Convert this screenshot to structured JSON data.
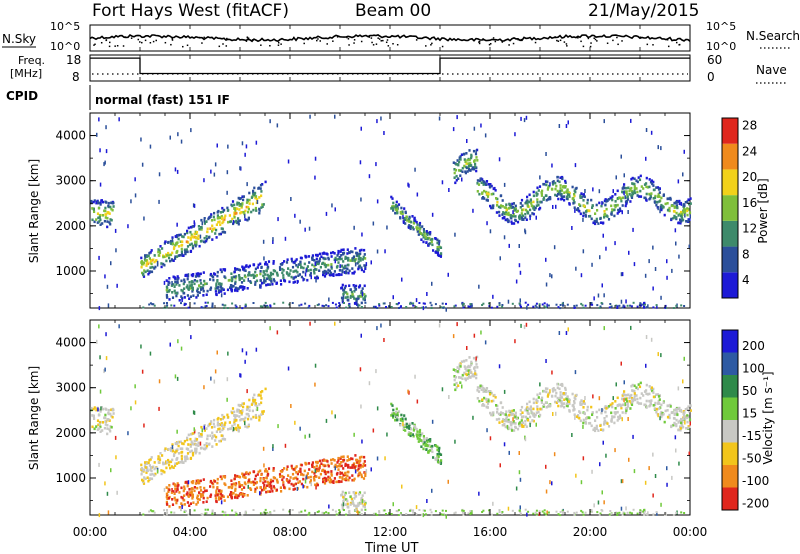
{
  "header": {
    "station": "Fort Hays West (fitACF)",
    "beam": "Beam 00",
    "date": "21/May/2015"
  },
  "noise_panel": {
    "left_label": "N.Sky",
    "right_label": "N.Search",
    "left_ticks": [
      "10^5",
      "10^0"
    ],
    "right_ticks": [
      "10^5",
      "10^0"
    ]
  },
  "freq_panel": {
    "left_label_line1": "Freq.",
    "left_label_line2": "[MHz]",
    "right_label": "Nave",
    "left_ticks": [
      "18",
      "8"
    ],
    "right_ticks": [
      "60",
      "0"
    ],
    "freq_steps": [
      {
        "t_start": 0,
        "t_end": 2,
        "value": 17.5
      },
      {
        "t_start": 2,
        "t_end": 14,
        "value": 10.5
      },
      {
        "t_start": 14,
        "t_end": 24,
        "value": 17.5
      }
    ]
  },
  "cpid_panel": {
    "label": "CPID",
    "text": "normal (fast) 151 IF"
  },
  "x_axis": {
    "label": "Time UT",
    "ticks": [
      "00:00",
      "04:00",
      "08:00",
      "12:00",
      "16:00",
      "20:00",
      "00:00"
    ],
    "tick_hours": [
      0,
      4,
      8,
      12,
      16,
      20,
      24
    ]
  },
  "power_panel": {
    "ylabel": "Slant Range [km]",
    "yticks": [
      "1000",
      "2000",
      "3000",
      "4000"
    ],
    "ytick_values": [
      1000,
      2000,
      3000,
      4000
    ],
    "ylim": [
      180,
      4500
    ],
    "colorbar_label": "Power [dB]",
    "colorbar_ticks": [
      "4",
      "8",
      "12",
      "16",
      "20",
      "24",
      "28"
    ],
    "colorbar_colors": [
      "#1d1ad6",
      "#2b4f9a",
      "#3e8a6b",
      "#7fbf3a",
      "#f2d21b",
      "#f08a1c",
      "#e0261c"
    ]
  },
  "velocity_panel": {
    "ylabel": "Slant Range [km]",
    "yticks": [
      "1000",
      "2000",
      "3000",
      "4000"
    ],
    "colorbar_label": "Velocity [m s⁻¹]",
    "colorbar_ticks": [
      "200",
      "100",
      "50",
      "15",
      "-15",
      "-50",
      "-100",
      "-200"
    ],
    "colorbar_colors": [
      "#1d1ad6",
      "#2e5aa3",
      "#2f8a4a",
      "#6fc93a",
      "#c8c8c4",
      "#f2c51b",
      "#f08a1c",
      "#e0261c"
    ]
  },
  "chart_data": [
    {
      "type": "heatmap",
      "title": "Power",
      "xlabel": "Time UT",
      "ylabel": "Slant Range [km]",
      "xlim": [
        0,
        24
      ],
      "ylim": [
        180,
        4500
      ],
      "colorbar_label": "Power [dB]",
      "colorbar_range": [
        2,
        30
      ],
      "features": [
        {
          "t_start": 0.0,
          "t_end": 0.9,
          "range_start": 2000,
          "range_end": 2650,
          "peak_db": 20
        },
        {
          "t_start": 2.0,
          "t_end": 7.0,
          "range_start": 900,
          "range_end": 2900,
          "peak_db": 22
        },
        {
          "t_start": 3.0,
          "t_end": 11.0,
          "range_start": 400,
          "range_end": 1600,
          "peak_db": 14
        },
        {
          "t_start": 10.0,
          "t_end": 11.0,
          "range_start": 250,
          "range_end": 750,
          "peak_db": 15
        },
        {
          "t_start": 12.0,
          "t_end": 14.0,
          "range_start": 1400,
          "range_end": 2700,
          "peak_db": 16
        },
        {
          "t_start": 14.5,
          "t_end": 24.0,
          "range_start": 1900,
          "range_end": 3800,
          "peak_db": 18
        }
      ]
    },
    {
      "type": "heatmap",
      "title": "Velocity",
      "xlabel": "Time UT",
      "ylabel": "Slant Range [km]",
      "xlim": [
        0,
        24
      ],
      "ylim": [
        180,
        4500
      ],
      "colorbar_label": "Velocity [m s⁻¹]",
      "colorbar_range": [
        -200,
        200
      ],
      "features": [
        {
          "t_start": 0.0,
          "t_end": 0.9,
          "range_start": 2000,
          "range_end": 2650,
          "velocity": 0
        },
        {
          "t_start": 2.0,
          "t_end": 7.0,
          "range_start": 900,
          "range_end": 2900,
          "velocity": -10
        },
        {
          "t_start": 3.0,
          "t_end": 11.0,
          "range_start": 400,
          "range_end": 1600,
          "velocity": -70
        },
        {
          "t_start": 10.0,
          "t_end": 11.0,
          "range_start": 250,
          "range_end": 750,
          "velocity": 0
        },
        {
          "t_start": 12.0,
          "t_end": 14.0,
          "range_start": 1400,
          "range_end": 2700,
          "velocity": 25
        },
        {
          "t_start": 14.5,
          "t_end": 24.0,
          "range_start": 1900,
          "range_end": 3800,
          "velocity": 0
        }
      ]
    }
  ]
}
